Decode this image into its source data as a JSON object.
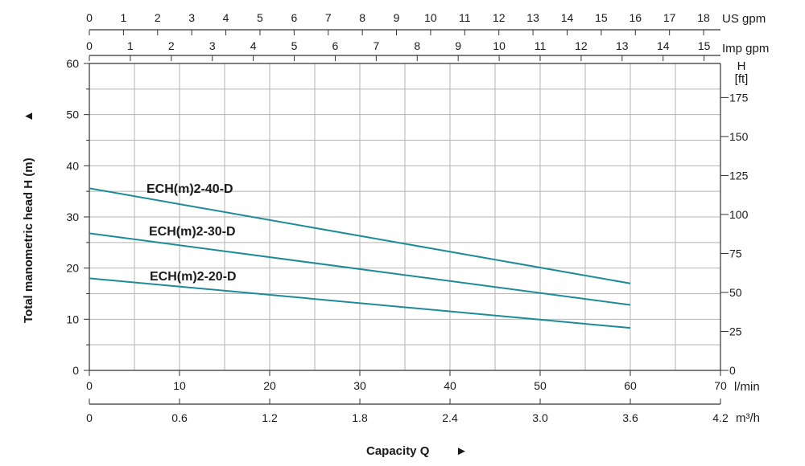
{
  "chart_data": {
    "type": "line",
    "colors": {
      "curve": "#1c8b97",
      "grid": "#b4b4b4",
      "axis": "#333333"
    },
    "grid": true,
    "x": [
      0,
      60
    ],
    "series": [
      {
        "name": "ECH(m)2-40-D",
        "values": [
          35.6,
          17.0
        ]
      },
      {
        "name": "ECH(m)2-30-D",
        "values": [
          26.8,
          12.8
        ]
      },
      {
        "name": "ECH(m)2-20-D",
        "values": [
          18.0,
          8.3
        ]
      }
    ],
    "axes": {
      "x_lmin": {
        "ticks": [
          "0",
          "10",
          "20",
          "30",
          "40",
          "50",
          "60",
          "70"
        ],
        "unit": "l/min",
        "range": [
          0,
          70
        ]
      },
      "x_m3h": {
        "ticks": [
          "0",
          "0.6",
          "1.2",
          "1.8",
          "2.4",
          "3.0",
          "3.6",
          "4.2"
        ],
        "unit": "m³/h",
        "range": [
          0,
          4.2
        ]
      },
      "x_usgpm": {
        "ticks": [
          "0",
          "1",
          "2",
          "3",
          "4",
          "5",
          "6",
          "7",
          "8",
          "9",
          "10",
          "11",
          "12",
          "13",
          "14",
          "15",
          "16",
          "17",
          "18"
        ],
        "unit": "US gpm"
      },
      "x_impgpm": {
        "ticks": [
          "0",
          "1",
          "2",
          "3",
          "4",
          "5",
          "6",
          "7",
          "8",
          "9",
          "10",
          "11",
          "12",
          "13",
          "14",
          "15"
        ],
        "unit": "Imp gpm"
      },
      "y_m": {
        "ticks": [
          "0",
          "10",
          "20",
          "30",
          "40",
          "50",
          "60"
        ],
        "label": "Total manometric head H (m)",
        "range": [
          0,
          60
        ]
      },
      "y_ft": {
        "ticks": [
          "0",
          "25",
          "50",
          "75",
          "100",
          "125",
          "150",
          "175"
        ],
        "unit_top": "H",
        "unit_bottom": "[ft]"
      }
    },
    "xlabel": "Capacity Q",
    "ylabel": "Total manometric head H (m)",
    "arrow_glyph": "►",
    "arrow_glyph_up": "▲"
  }
}
